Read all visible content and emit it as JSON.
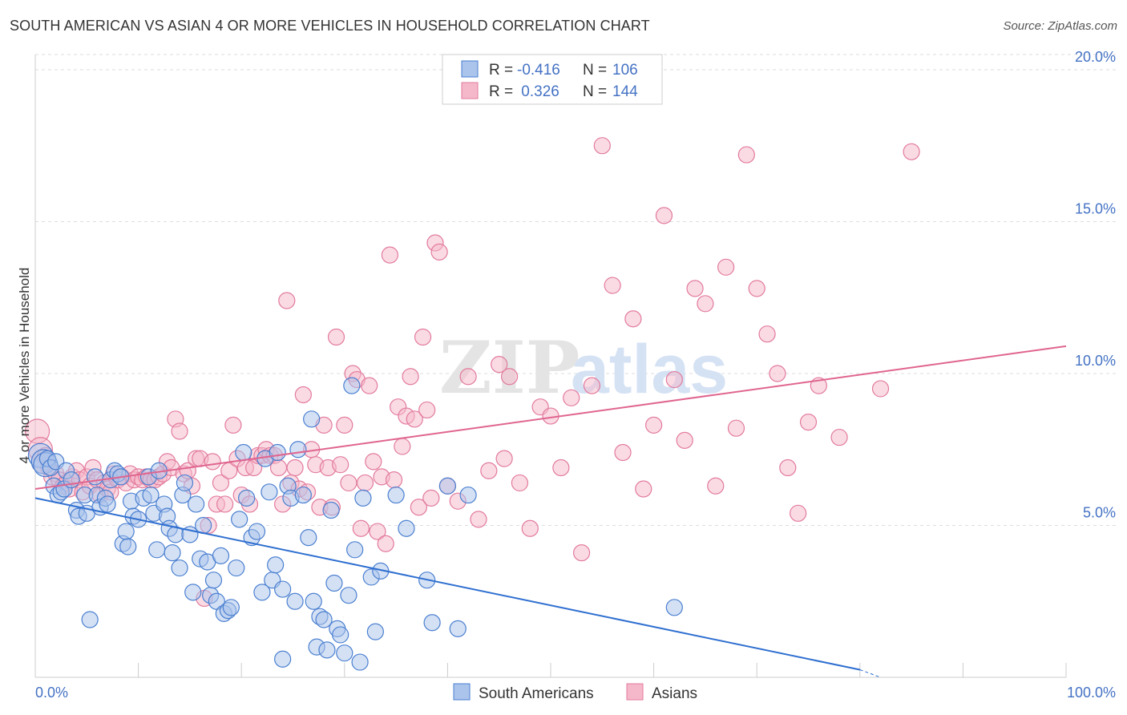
{
  "title": "SOUTH AMERICAN VS ASIAN 4 OR MORE VEHICLES IN HOUSEHOLD CORRELATION CHART",
  "source": "Source: ZipAtlas.com",
  "watermark": {
    "zip": "ZIP",
    "atlas": "atlas"
  },
  "colors": {
    "blue_fill": "#aac4ec",
    "blue_stroke": "#4a7fd0",
    "blue_line": "#2f6fd0",
    "pink_fill": "#f5b8ca",
    "pink_stroke": "#e27a9c",
    "pink_line": "#e0658f",
    "tick_text": "#4472c4",
    "grid": "#dddddd"
  },
  "legend": {
    "rows": [
      {
        "r_label": "R =",
        "r_value": "-0.416",
        "n_label": "N =",
        "n_value": "106"
      },
      {
        "r_label": "R =",
        "r_value": " 0.326",
        "n_label": "N =",
        "n_value": "144"
      }
    ]
  },
  "bottom_legend": [
    "South Americans",
    "Asians"
  ],
  "chart_data": {
    "type": "scatter",
    "title": "SOUTH AMERICAN VS ASIAN 4 OR MORE VEHICLES IN HOUSEHOLD CORRELATION CHART",
    "xlabel": "",
    "ylabel": "4 or more Vehicles in Household",
    "xlim": [
      0,
      100
    ],
    "ylim": [
      0,
      20.5
    ],
    "x_tick_labels": [
      "0.0%",
      "100.0%"
    ],
    "y_ticks": [
      5,
      10,
      15,
      20
    ],
    "y_tick_labels": [
      "5.0%",
      "10.0%",
      "15.0%",
      "20.0%"
    ],
    "grid": true,
    "legend_position": "top-center",
    "series": [
      {
        "name": "South Americans",
        "r": -0.416,
        "n": 106,
        "trend": {
          "x0": 0,
          "y0": 5.9,
          "x1": 80,
          "y1": 0.25
        },
        "points": [
          [
            0.5,
            7.3
          ],
          [
            0.8,
            7.1
          ],
          [
            1.0,
            7.0
          ],
          [
            1.2,
            7.2
          ],
          [
            1.5,
            6.9
          ],
          [
            1.8,
            6.3
          ],
          [
            2.0,
            7.1
          ],
          [
            2.2,
            6.0
          ],
          [
            2.5,
            6.1
          ],
          [
            2.8,
            6.2
          ],
          [
            3.0,
            6.8
          ],
          [
            3.5,
            6.5
          ],
          [
            4.0,
            5.5
          ],
          [
            4.2,
            5.3
          ],
          [
            4.8,
            6.0
          ],
          [
            5.0,
            5.4
          ],
          [
            5.3,
            1.9
          ],
          [
            5.8,
            6.6
          ],
          [
            6.0,
            6.0
          ],
          [
            6.3,
            5.6
          ],
          [
            6.8,
            5.9
          ],
          [
            7.0,
            5.7
          ],
          [
            7.3,
            6.5
          ],
          [
            7.7,
            6.8
          ],
          [
            8.0,
            6.7
          ],
          [
            8.3,
            6.6
          ],
          [
            8.5,
            4.4
          ],
          [
            8.8,
            4.8
          ],
          [
            9.0,
            4.3
          ],
          [
            9.3,
            5.8
          ],
          [
            9.5,
            5.3
          ],
          [
            10.0,
            5.2
          ],
          [
            10.5,
            5.9
          ],
          [
            11.0,
            6.6
          ],
          [
            11.2,
            6.0
          ],
          [
            11.5,
            5.4
          ],
          [
            11.8,
            4.2
          ],
          [
            12.0,
            6.8
          ],
          [
            12.5,
            5.7
          ],
          [
            12.8,
            5.3
          ],
          [
            13.0,
            4.9
          ],
          [
            13.3,
            4.1
          ],
          [
            13.6,
            4.7
          ],
          [
            14.0,
            3.6
          ],
          [
            14.3,
            6.0
          ],
          [
            14.5,
            6.4
          ],
          [
            15.0,
            4.7
          ],
          [
            15.3,
            2.8
          ],
          [
            15.6,
            5.7
          ],
          [
            16.0,
            3.9
          ],
          [
            16.3,
            5.0
          ],
          [
            16.7,
            3.8
          ],
          [
            17.0,
            2.7
          ],
          [
            17.3,
            3.2
          ],
          [
            17.6,
            2.5
          ],
          [
            18.0,
            4.0
          ],
          [
            18.3,
            2.1
          ],
          [
            18.7,
            2.2
          ],
          [
            19.0,
            2.3
          ],
          [
            19.5,
            3.6
          ],
          [
            19.8,
            5.2
          ],
          [
            20.2,
            7.4
          ],
          [
            20.5,
            5.9
          ],
          [
            21.0,
            4.6
          ],
          [
            21.5,
            4.8
          ],
          [
            22.0,
            2.8
          ],
          [
            22.3,
            7.2
          ],
          [
            22.7,
            6.1
          ],
          [
            23.0,
            3.2
          ],
          [
            23.3,
            3.7
          ],
          [
            23.5,
            7.4
          ],
          [
            24.0,
            2.9
          ],
          [
            24.5,
            6.3
          ],
          [
            24.8,
            5.9
          ],
          [
            25.2,
            2.5
          ],
          [
            25.5,
            7.5
          ],
          [
            26.0,
            6.0
          ],
          [
            26.5,
            4.6
          ],
          [
            26.8,
            8.5
          ],
          [
            27.0,
            2.5
          ],
          [
            27.3,
            1.0
          ],
          [
            27.6,
            2.0
          ],
          [
            28.0,
            1.9
          ],
          [
            28.3,
            0.9
          ],
          [
            28.7,
            5.5
          ],
          [
            29.0,
            3.1
          ],
          [
            29.3,
            1.6
          ],
          [
            29.6,
            1.4
          ],
          [
            30.0,
            0.8
          ],
          [
            30.4,
            2.7
          ],
          [
            30.7,
            9.6
          ],
          [
            31.0,
            4.2
          ],
          [
            31.5,
            0.5
          ],
          [
            31.8,
            5.9
          ],
          [
            32.6,
            3.3
          ],
          [
            33.0,
            1.5
          ],
          [
            33.5,
            3.5
          ],
          [
            35.0,
            6.0
          ],
          [
            36.0,
            4.9
          ],
          [
            38.0,
            3.2
          ],
          [
            38.5,
            1.8
          ],
          [
            40.0,
            6.3
          ],
          [
            41.0,
            1.6
          ],
          [
            42.0,
            6.0
          ],
          [
            62.0,
            2.3
          ],
          [
            24.0,
            0.6
          ]
        ]
      },
      {
        "name": "Asians",
        "r": 0.326,
        "n": 144,
        "trend": {
          "x0": 0,
          "y0": 6.2,
          "x1": 100,
          "y1": 10.9
        },
        "points": [
          [
            0.2,
            8.1
          ],
          [
            0.5,
            7.5
          ],
          [
            0.8,
            7.1
          ],
          [
            1.0,
            7.3
          ],
          [
            1.3,
            6.9
          ],
          [
            1.6,
            6.6
          ],
          [
            2.0,
            6.7
          ],
          [
            2.3,
            6.5
          ],
          [
            2.7,
            6.3
          ],
          [
            3.0,
            6.4
          ],
          [
            3.3,
            6.2
          ],
          [
            3.6,
            6.6
          ],
          [
            4.0,
            6.8
          ],
          [
            4.3,
            6.5
          ],
          [
            4.6,
            6.1
          ],
          [
            5.0,
            6.6
          ],
          [
            5.3,
            6.3
          ],
          [
            5.6,
            6.9
          ],
          [
            6.0,
            6.5
          ],
          [
            6.3,
            6.0
          ],
          [
            6.7,
            6.4
          ],
          [
            7.0,
            6.2
          ],
          [
            7.3,
            6.1
          ],
          [
            7.6,
            6.7
          ],
          [
            8.0,
            6.5
          ],
          [
            8.4,
            6.6
          ],
          [
            8.8,
            6.4
          ],
          [
            9.2,
            6.7
          ],
          [
            9.6,
            6.5
          ],
          [
            10.0,
            6.6
          ],
          [
            10.4,
            6.5
          ],
          [
            10.8,
            6.6
          ],
          [
            11.2,
            6.5
          ],
          [
            11.6,
            6.5
          ],
          [
            12.0,
            6.6
          ],
          [
            12.4,
            6.7
          ],
          [
            12.8,
            7.1
          ],
          [
            13.2,
            6.9
          ],
          [
            13.6,
            8.5
          ],
          [
            14.0,
            8.1
          ],
          [
            14.4,
            6.7
          ],
          [
            14.8,
            6.8
          ],
          [
            15.2,
            6.3
          ],
          [
            15.6,
            7.2
          ],
          [
            16.0,
            7.2
          ],
          [
            16.4,
            2.6
          ],
          [
            16.8,
            5.0
          ],
          [
            17.2,
            7.1
          ],
          [
            17.6,
            5.7
          ],
          [
            18.0,
            6.4
          ],
          [
            18.4,
            5.7
          ],
          [
            18.8,
            6.8
          ],
          [
            19.2,
            8.3
          ],
          [
            19.6,
            7.2
          ],
          [
            20.0,
            6.0
          ],
          [
            20.4,
            6.9
          ],
          [
            20.8,
            5.7
          ],
          [
            21.2,
            6.9
          ],
          [
            21.6,
            7.3
          ],
          [
            22.0,
            7.3
          ],
          [
            22.4,
            7.5
          ],
          [
            22.8,
            7.3
          ],
          [
            23.2,
            7.3
          ],
          [
            23.6,
            6.9
          ],
          [
            24.0,
            5.7
          ],
          [
            24.4,
            12.4
          ],
          [
            24.8,
            6.4
          ],
          [
            25.2,
            6.9
          ],
          [
            25.6,
            6.2
          ],
          [
            26.0,
            9.3
          ],
          [
            26.4,
            6.1
          ],
          [
            26.8,
            7.5
          ],
          [
            27.2,
            7.0
          ],
          [
            27.6,
            5.6
          ],
          [
            28.0,
            8.3
          ],
          [
            28.4,
            6.9
          ],
          [
            28.8,
            5.6
          ],
          [
            29.2,
            11.2
          ],
          [
            29.6,
            7.0
          ],
          [
            30.0,
            8.3
          ],
          [
            30.4,
            6.4
          ],
          [
            30.8,
            10.0
          ],
          [
            31.2,
            9.8
          ],
          [
            31.6,
            4.9
          ],
          [
            32.0,
            6.4
          ],
          [
            32.4,
            9.6
          ],
          [
            32.8,
            7.1
          ],
          [
            33.2,
            4.8
          ],
          [
            33.6,
            6.6
          ],
          [
            34.0,
            4.4
          ],
          [
            34.4,
            13.9
          ],
          [
            34.8,
            6.5
          ],
          [
            35.2,
            8.9
          ],
          [
            35.6,
            7.6
          ],
          [
            36.0,
            8.6
          ],
          [
            36.4,
            9.9
          ],
          [
            36.8,
            8.5
          ],
          [
            37.2,
            5.6
          ],
          [
            37.6,
            11.2
          ],
          [
            38.0,
            8.8
          ],
          [
            38.4,
            5.9
          ],
          [
            38.8,
            14.3
          ],
          [
            39.2,
            14.0
          ],
          [
            40.0,
            6.3
          ],
          [
            41.0,
            5.8
          ],
          [
            42.0,
            9.9
          ],
          [
            43.0,
            5.2
          ],
          [
            44.0,
            6.8
          ],
          [
            45.0,
            10.3
          ],
          [
            45.5,
            7.2
          ],
          [
            46.0,
            9.9
          ],
          [
            47.0,
            6.4
          ],
          [
            48.0,
            4.9
          ],
          [
            49.0,
            8.9
          ],
          [
            50.0,
            8.6
          ],
          [
            51.0,
            6.9
          ],
          [
            52.0,
            9.2
          ],
          [
            53.0,
            4.1
          ],
          [
            54.0,
            9.6
          ],
          [
            55.0,
            17.5
          ],
          [
            56.0,
            12.9
          ],
          [
            57.0,
            7.4
          ],
          [
            58.0,
            11.8
          ],
          [
            59.0,
            6.2
          ],
          [
            60.0,
            8.3
          ],
          [
            61.0,
            15.2
          ],
          [
            62.0,
            9.8
          ],
          [
            63.0,
            7.8
          ],
          [
            64.0,
            12.8
          ],
          [
            65.0,
            12.3
          ],
          [
            66.0,
            6.3
          ],
          [
            67.0,
            13.5
          ],
          [
            68.0,
            8.2
          ],
          [
            69.0,
            17.2
          ],
          [
            70.0,
            12.8
          ],
          [
            71.0,
            11.3
          ],
          [
            72.0,
            10.0
          ],
          [
            73.0,
            6.9
          ],
          [
            74.0,
            5.4
          ],
          [
            75.0,
            8.4
          ],
          [
            76.0,
            9.6
          ],
          [
            78.0,
            7.9
          ],
          [
            82.0,
            9.5
          ],
          [
            85.0,
            17.3
          ]
        ]
      }
    ]
  }
}
